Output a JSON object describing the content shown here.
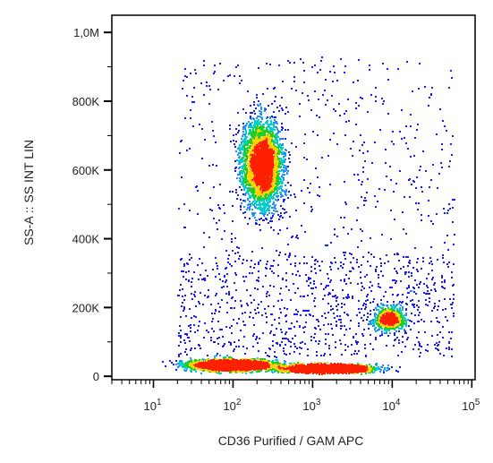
{
  "chart_data": {
    "type": "scatter",
    "style": "flow-cytometry density dot plot",
    "xlabel": "CD36 Purified / GAM APC",
    "ylabel": "SS-A :: SS INT LIN",
    "x_scale": "log",
    "xlim": [
      3,
      110000
    ],
    "x_ticks": [
      {
        "value": 10,
        "base": "10",
        "exp": "1"
      },
      {
        "value": 100,
        "base": "10",
        "exp": "2"
      },
      {
        "value": 1000,
        "base": "10",
        "exp": "3"
      },
      {
        "value": 10000,
        "base": "10",
        "exp": "4"
      },
      {
        "value": 100000,
        "base": "10",
        "exp": "5"
      }
    ],
    "y_scale": "linear",
    "ylim": [
      -10000,
      1050000
    ],
    "y_ticks": [
      {
        "value": 0,
        "label": "0"
      },
      {
        "value": 200000,
        "label": "200K"
      },
      {
        "value": 400000,
        "label": "400K"
      },
      {
        "value": 600000,
        "label": "600K"
      },
      {
        "value": 800000,
        "label": "800K"
      },
      {
        "value": 1000000,
        "label": "1,0M"
      }
    ],
    "grid": false,
    "density_colors": [
      "#1a1aff",
      "#1e90ff",
      "#00d0d0",
      "#20d020",
      "#ffd000",
      "#ff2000"
    ],
    "populations": [
      {
        "x_center": 230,
        "x_spread_decades": 0.18,
        "y_center": 620000,
        "y_spread": 90000,
        "relative_count": 0.3
      },
      {
        "x_center": 1500,
        "x_spread_decades": 0.4,
        "y_center": 25000,
        "y_spread": 8000,
        "relative_count": 0.28
      },
      {
        "x_center": 100,
        "x_spread_decades": 0.4,
        "y_center": 35000,
        "y_spread": 12000,
        "relative_count": 0.22
      },
      {
        "x_center": 9000,
        "x_spread_decades": 0.14,
        "y_center": 170000,
        "y_spread": 25000,
        "relative_count": 0.06
      }
    ]
  }
}
